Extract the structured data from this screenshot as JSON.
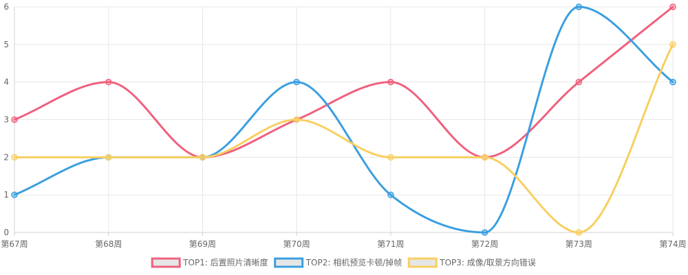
{
  "chart_data": {
    "type": "line",
    "categories": [
      "第67周",
      "第68周",
      "第69周",
      "第70周",
      "第71周",
      "第72周",
      "第73周",
      "第74周"
    ],
    "ylim": [
      0,
      6
    ],
    "yticks": [
      0,
      1,
      2,
      3,
      4,
      5,
      6
    ],
    "grid": true,
    "legend_position": "bottom",
    "series": [
      {
        "name": "TOP1: 后置照片清晰度",
        "color": "#f0607e",
        "values": [
          3,
          4,
          2,
          3,
          4,
          2,
          4,
          6
        ]
      },
      {
        "name": "TOP2: 相机预览卡顿/掉帧",
        "color": "#3a9fe0",
        "values": [
          1,
          2,
          2,
          4,
          1,
          0,
          6,
          4
        ]
      },
      {
        "name": "TOP3: 成像/取景方向错误",
        "color": "#f8cf60",
        "values": [
          2,
          2,
          2,
          3,
          2,
          2,
          0,
          5
        ]
      }
    ]
  }
}
